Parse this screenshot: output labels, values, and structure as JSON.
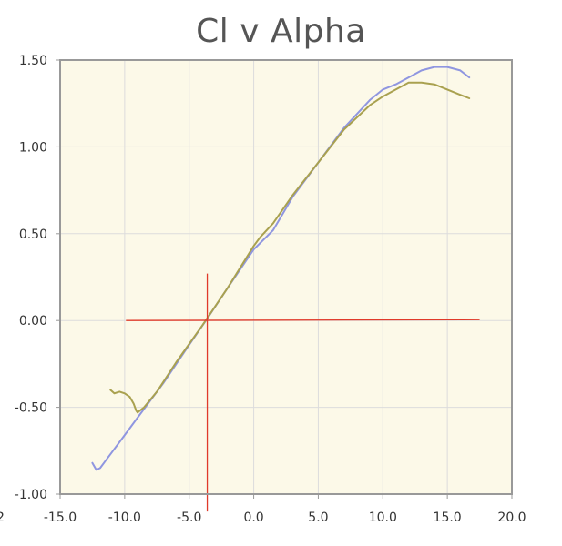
{
  "chart_data": {
    "type": "line",
    "title": "Cl v Alpha",
    "xlabel": "",
    "ylabel": "",
    "xlim": [
      -15,
      20
    ],
    "ylim": [
      -1,
      1.5
    ],
    "x_ticks": [
      {
        "value": -15,
        "label": "-15.0"
      },
      {
        "value": -10,
        "label": "-10.0"
      },
      {
        "value": -5,
        "label": "-5.0"
      },
      {
        "value": 0,
        "label": "0.0"
      },
      {
        "value": 5,
        "label": "5.0"
      },
      {
        "value": 10,
        "label": "10.0"
      },
      {
        "value": 15,
        "label": "15.0"
      },
      {
        "value": 20,
        "label": "20.0"
      }
    ],
    "y_ticks": [
      {
        "value": -1,
        "label": "-1.00"
      },
      {
        "value": -0.5,
        "label": "-0.50"
      },
      {
        "value": 0,
        "label": "0.00"
      },
      {
        "value": 0.5,
        "label": "0.50"
      },
      {
        "value": 1,
        "label": "1.00"
      },
      {
        "value": 1.5,
        "label": "1.50"
      }
    ],
    "grid": true,
    "background_color": "#fcf9e8",
    "grid_color": "#dcdcdc",
    "border_color": "#999999",
    "edge_fragment_label": "2",
    "series": [
      {
        "color": "#8f96e0",
        "x": [
          -12.5,
          -12.2,
          -11.9,
          -11.5,
          -11.0,
          -10.0,
          -9.0,
          -7.0,
          -5.0,
          -3.7,
          -2.0,
          0.0,
          1.5,
          3.0,
          5.0,
          7.0,
          9.0,
          10.0,
          11.0,
          12.0,
          13.0,
          14.0,
          15.0,
          16.0,
          16.7
        ],
        "y": [
          -0.82,
          -0.86,
          -0.85,
          -0.81,
          -0.76,
          -0.66,
          -0.56,
          -0.36,
          -0.14,
          0.0,
          0.19,
          0.41,
          0.52,
          0.71,
          0.91,
          1.11,
          1.27,
          1.33,
          1.36,
          1.4,
          1.44,
          1.46,
          1.46,
          1.44,
          1.4
        ]
      },
      {
        "color": "#a9a14f",
        "x": [
          -11.1,
          -10.8,
          -10.4,
          -10.0,
          -9.6,
          -9.3,
          -9.1,
          -9.0,
          -8.5,
          -7.5,
          -6.0,
          -4.0,
          -2.0,
          0.0,
          0.5,
          1.5,
          3.0,
          5.0,
          7.0,
          9.0,
          10.0,
          11.0,
          12.0,
          13.0,
          14.0,
          15.0,
          16.0,
          16.7
        ],
        "y": [
          -0.4,
          -0.42,
          -0.41,
          -0.42,
          -0.44,
          -0.48,
          -0.52,
          -0.53,
          -0.5,
          -0.41,
          -0.24,
          -0.03,
          0.19,
          0.43,
          0.48,
          0.56,
          0.72,
          0.91,
          1.1,
          1.24,
          1.29,
          1.33,
          1.37,
          1.37,
          1.36,
          1.33,
          1.3,
          1.28
        ]
      }
    ],
    "reference_lines": [
      {
        "color": "#e03a2a",
        "x1": -9.9,
        "y1": 0.0,
        "x2": 17.5,
        "y2": 0.005
      },
      {
        "color": "#e03a2a",
        "x1": -3.6,
        "y1": 0.27,
        "x2": -3.6,
        "y2": -1.1
      }
    ]
  }
}
